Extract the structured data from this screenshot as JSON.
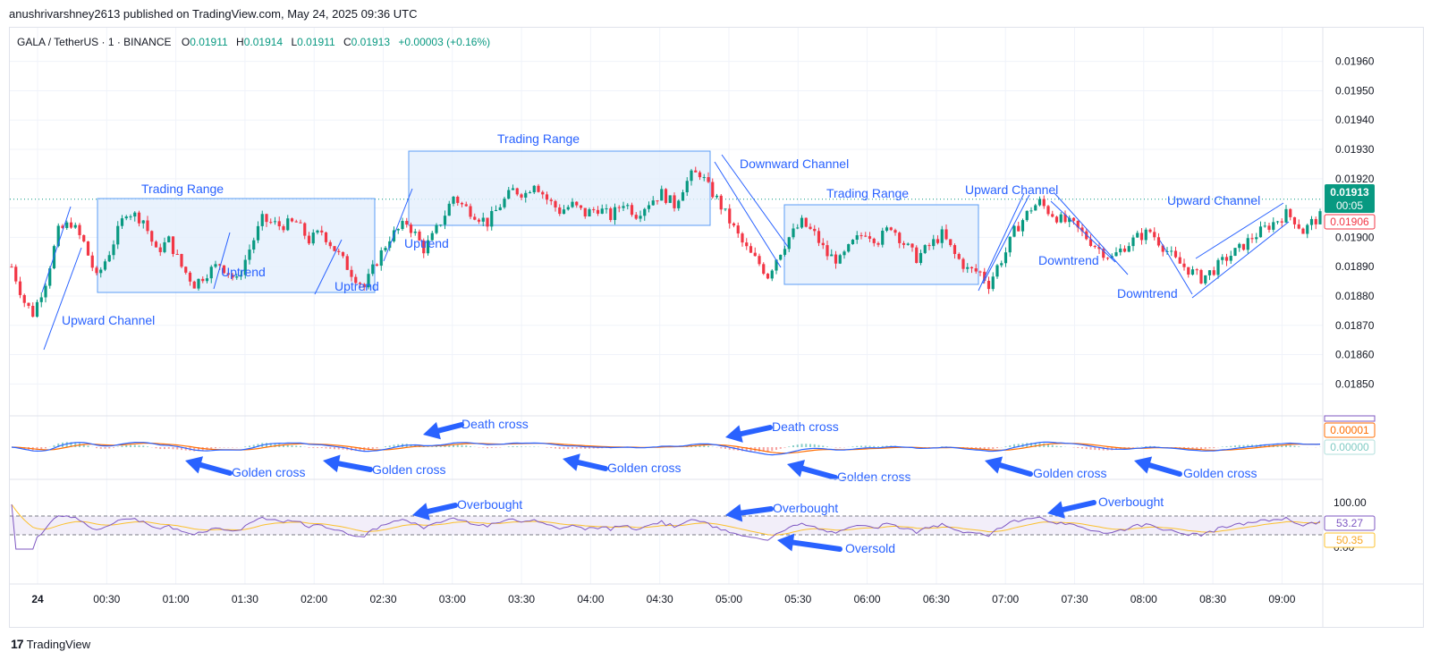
{
  "header": {
    "publisher_line": "anushrivarshney2613 published on TradingView.com, May 24, 2025 09:36 UTC"
  },
  "legend": {
    "symbol": "GALA / TetherUS · 1 · BINANCE",
    "open_label": "O",
    "open": "0.01911",
    "high_label": "H",
    "high": "0.01914",
    "low_label": "L",
    "low": "0.01911",
    "close_label": "C",
    "close": "0.01913",
    "change": "+0.00003 (+0.16%)"
  },
  "colors": {
    "up": "#089981",
    "down": "#f23645",
    "annotation": "#2962ff",
    "range_fill": "#e3effd",
    "macd": "#2962ff",
    "signal": "#ff6d00",
    "rsi": "#7e57c2",
    "rsi_ma": "#fbc02d"
  },
  "price_badges": {
    "last_price": "0.01913",
    "countdown": "00:05",
    "ref_price": "0.01906"
  },
  "macd_badges": {
    "signal": "0.00001",
    "histogram": "0.00000"
  },
  "rsi_badges": {
    "rsi": "53.27",
    "rsi_ma": "50.35"
  },
  "footer": {
    "brand": "TradingView"
  },
  "annotations": [
    {
      "text": "Trading Range"
    },
    {
      "text": "Trading Range"
    },
    {
      "text": "Trading Range"
    },
    {
      "text": "Upward Channel"
    },
    {
      "text": "Uptrend"
    },
    {
      "text": "Uptrend"
    },
    {
      "text": "Uptrend"
    },
    {
      "text": "Downward Channel"
    },
    {
      "text": "Upward Channel"
    },
    {
      "text": "Downtrend"
    },
    {
      "text": "Downtrend"
    },
    {
      "text": "Upward Channel"
    },
    {
      "text": "Death cross"
    },
    {
      "text": "Death cross"
    },
    {
      "text": "Golden cross"
    },
    {
      "text": "Golden cross"
    },
    {
      "text": "Golden cross"
    },
    {
      "text": "Golden cross"
    },
    {
      "text": "Golden cross"
    },
    {
      "text": "Golden cross"
    },
    {
      "text": "Overbought"
    },
    {
      "text": "Overbought"
    },
    {
      "text": "Overbought"
    },
    {
      "text": "Oversold"
    }
  ],
  "chart_data": {
    "type": "candlestick",
    "y_axis": {
      "ticks": [
        "0.01960",
        "0.01950",
        "0.01940",
        "0.01930",
        "0.01920",
        "0.01910",
        "0.01900",
        "0.01890",
        "0.01880",
        "0.01870",
        "0.01860",
        "0.01850"
      ],
      "ylim": [
        0.01844,
        0.01966
      ]
    },
    "x_axis": {
      "ticks": [
        "24",
        "00:30",
        "01:00",
        "01:30",
        "02:00",
        "02:30",
        "03:00",
        "03:30",
        "04:00",
        "04:30",
        "05:00",
        "05:30",
        "06:00",
        "06:30",
        "07:00",
        "07:30",
        "08:00",
        "08:30",
        "09:00"
      ]
    },
    "price_path": [
      [
        0,
        0.0189
      ],
      [
        3,
        0.01878
      ],
      [
        5,
        0.01874
      ],
      [
        8,
        0.01885
      ],
      [
        11,
        0.01902
      ],
      [
        14,
        0.01905
      ],
      [
        17,
        0.01898
      ],
      [
        20,
        0.01886
      ],
      [
        23,
        0.01895
      ],
      [
        27,
        0.01909
      ],
      [
        31,
        0.01906
      ],
      [
        34,
        0.01895
      ],
      [
        37,
        0.01899
      ],
      [
        40,
        0.0189
      ],
      [
        43,
        0.01884
      ],
      [
        46,
        0.01888
      ],
      [
        49,
        0.01891
      ],
      [
        53,
        0.01885
      ],
      [
        56,
        0.01896
      ],
      [
        59,
        0.01906
      ],
      [
        63,
        0.01904
      ],
      [
        67,
        0.01905
      ],
      [
        70,
        0.01899
      ],
      [
        73,
        0.01902
      ],
      [
        77,
        0.01894
      ],
      [
        80,
        0.01888
      ],
      [
        83,
        0.01883
      ],
      [
        86,
        0.01892
      ],
      [
        89,
        0.019
      ],
      [
        93,
        0.01905
      ],
      [
        95,
        0.01901
      ],
      [
        97,
        0.01896
      ],
      [
        99,
        0.019
      ],
      [
        102,
        0.01908
      ],
      [
        104,
        0.01914
      ],
      [
        106,
        0.01911
      ],
      [
        109,
        0.01908
      ],
      [
        112,
        0.01905
      ],
      [
        115,
        0.01911
      ],
      [
        118,
        0.01916
      ],
      [
        121,
        0.01915
      ],
      [
        123,
        0.01919
      ],
      [
        126,
        0.01913
      ],
      [
        129,
        0.01909
      ],
      [
        132,
        0.01911
      ],
      [
        135,
        0.01908
      ],
      [
        138,
        0.0191
      ],
      [
        141,
        0.01907
      ],
      [
        144,
        0.01912
      ],
      [
        147,
        0.01908
      ],
      [
        150,
        0.01912
      ],
      [
        153,
        0.01915
      ],
      [
        156,
        0.01911
      ],
      [
        158,
        0.01917
      ],
      [
        160,
        0.01921
      ],
      [
        162,
        0.01922
      ],
      [
        164,
        0.01917
      ],
      [
        166,
        0.01913
      ],
      [
        168,
        0.01908
      ],
      [
        170,
        0.01903
      ],
      [
        172,
        0.01898
      ],
      [
        174,
        0.01894
      ],
      [
        176,
        0.01891
      ],
      [
        178,
        0.01887
      ],
      [
        180,
        0.01893
      ],
      [
        183,
        0.019
      ],
      [
        186,
        0.01905
      ],
      [
        189,
        0.01901
      ],
      [
        192,
        0.01894
      ],
      [
        195,
        0.01892
      ],
      [
        198,
        0.01898
      ],
      [
        201,
        0.01902
      ],
      [
        204,
        0.01899
      ],
      [
        207,
        0.01904
      ],
      [
        210,
        0.01898
      ],
      [
        213,
        0.01893
      ],
      [
        216,
        0.01897
      ],
      [
        219,
        0.01901
      ],
      [
        222,
        0.01894
      ],
      [
        225,
        0.01889
      ],
      [
        228,
        0.01888
      ],
      [
        230,
        0.01884
      ],
      [
        232,
        0.0189
      ],
      [
        234,
        0.01895
      ],
      [
        236,
        0.01902
      ],
      [
        238,
        0.01906
      ],
      [
        240,
        0.0191
      ],
      [
        242,
        0.01912
      ],
      [
        244,
        0.01909
      ],
      [
        247,
        0.01906
      ],
      [
        250,
        0.01904
      ],
      [
        253,
        0.019
      ],
      [
        256,
        0.01896
      ],
      [
        259,
        0.01893
      ],
      [
        262,
        0.01897
      ],
      [
        265,
        0.019
      ],
      [
        268,
        0.01902
      ],
      [
        271,
        0.01897
      ],
      [
        274,
        0.01892
      ],
      [
        277,
        0.01889
      ],
      [
        280,
        0.01886
      ],
      [
        283,
        0.01889
      ],
      [
        286,
        0.01893
      ],
      [
        289,
        0.01896
      ],
      [
        292,
        0.019
      ],
      [
        295,
        0.01903
      ],
      [
        298,
        0.01906
      ],
      [
        300,
        0.01908
      ],
      [
        302,
        0.01906
      ],
      [
        304,
        0.01902
      ],
      [
        306,
        0.01905
      ],
      [
        308,
        0.01907
      ]
    ],
    "candle_count": 309
  }
}
